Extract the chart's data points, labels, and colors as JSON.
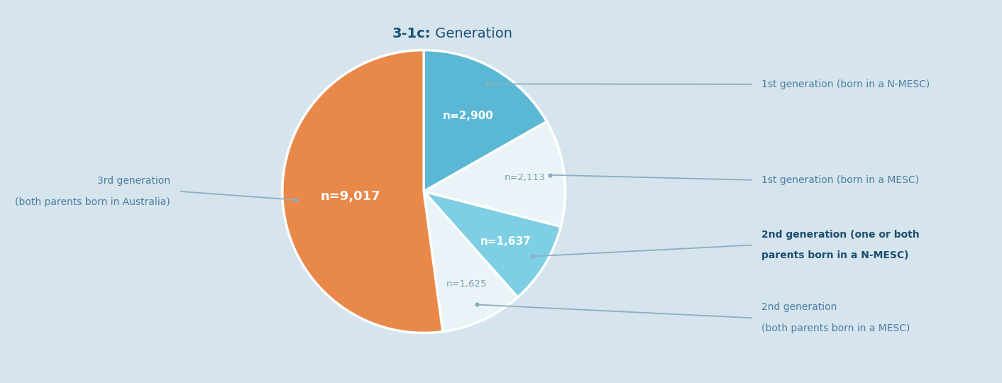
{
  "title_bold": "3-1c:",
  "title_regular": " Generation",
  "values": [
    2900,
    2113,
    1637,
    1625,
    9017
  ],
  "labels_inside": [
    "n=2,900",
    "n=2,113",
    "n=1,637",
    "n=1,625",
    "n=9,017"
  ],
  "colors": [
    "#5BB8D4",
    "#EAF4F8",
    "#7ECFE4",
    "#EAF4F8",
    "#E8894A"
  ],
  "background_color": "#D6E4EE",
  "title_color": "#1a5276",
  "outside_label_color": "#4a7fa0",
  "bold_label_color": "#1a4f6e",
  "inside_white_color": "#ffffff",
  "inside_gray_color": "#7a9fb0",
  "arrow_color": "#8aafc0",
  "figsize": [
    14.12,
    5.4
  ],
  "dpi": 100
}
